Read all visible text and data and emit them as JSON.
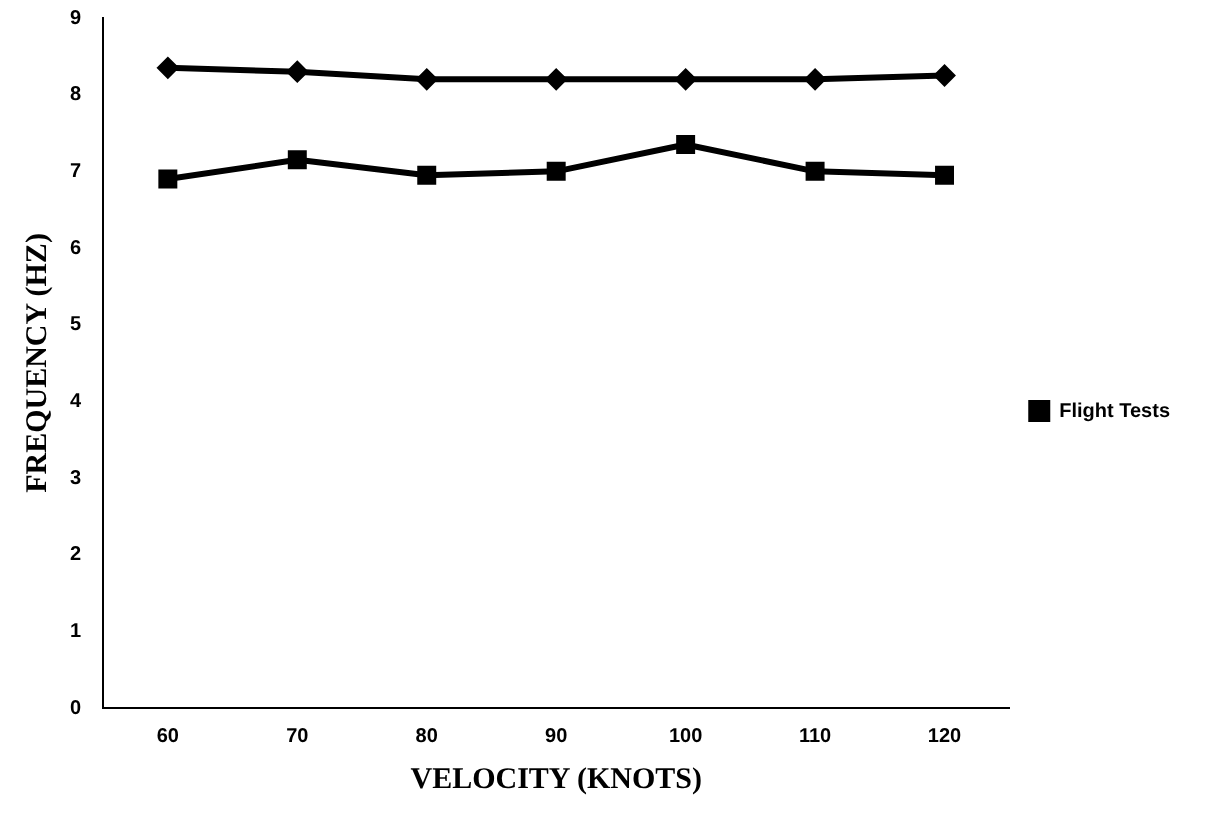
{
  "chart_data": {
    "type": "line",
    "xlabel": "VELOCITY (KNOTS)",
    "ylabel": "FREQUENCY (HZ)",
    "categories": [
      "60",
      "70",
      "80",
      "90",
      "100",
      "110",
      "120"
    ],
    "series": [
      {
        "color": "#000000",
        "marker": "diamond",
        "values": [
          8.35,
          8.3,
          8.2,
          8.2,
          8.2,
          8.2,
          8.25
        ]
      },
      {
        "name": "Flight Tests",
        "color": "#000000",
        "marker": "square",
        "values": [
          6.9,
          7.15,
          6.95,
          7.0,
          7.35,
          7.0,
          6.95
        ]
      }
    ],
    "ylim": [
      0,
      9
    ],
    "yticks": [
      0,
      1,
      2,
      3,
      4,
      5,
      6,
      7,
      8,
      9
    ],
    "grid": false,
    "legend": "right",
    "line_style": "solid"
  }
}
